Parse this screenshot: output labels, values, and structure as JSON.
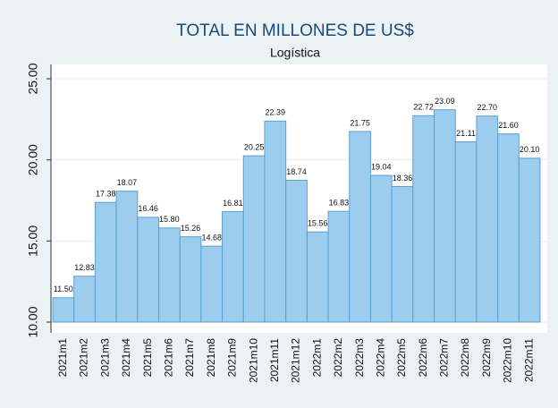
{
  "chart_data": {
    "type": "bar",
    "title": "TOTAL EN MILLONES DE US$",
    "subtitle": "Logística",
    "categories": [
      "2021m1",
      "2021m2",
      "2021m3",
      "2021m4",
      "2021m5",
      "2021m6",
      "2021m7",
      "2021m8",
      "2021m9",
      "2021m10",
      "2021m11",
      "2021m12",
      "2022m1",
      "2022m2",
      "2022m3",
      "2022m4",
      "2022m5",
      "2022m6",
      "2022m7",
      "2022m8",
      "2022m9",
      "2022m10",
      "2022m11"
    ],
    "values": [
      11.5,
      12.83,
      17.38,
      18.07,
      16.46,
      15.8,
      15.26,
      14.68,
      16.81,
      20.25,
      22.39,
      18.74,
      15.56,
      16.83,
      21.75,
      19.04,
      18.36,
      22.72,
      23.09,
      21.11,
      22.7,
      21.6,
      20.1
    ],
    "value_labels": [
      "11.50",
      "12.83",
      "17.38",
      "18.07",
      "16.46",
      "15.80",
      "15.26",
      "14.68",
      "16.81",
      "20.25",
      "22.39",
      "18.74",
      "15.56",
      "16.83",
      "21.75",
      "19.04",
      "18.36",
      "22.72",
      "23.09",
      "21.11",
      "22.70",
      "21.60",
      "20.10"
    ],
    "color": "#9dcdee",
    "ylim": [
      10,
      25.9
    ],
    "yticks": [
      {
        "value": 10,
        "label": "10.00"
      },
      {
        "value": 15,
        "label": "15.00"
      },
      {
        "value": 20,
        "label": "20.00"
      },
      {
        "value": 25,
        "label": "25.00"
      }
    ],
    "grid": true
  }
}
